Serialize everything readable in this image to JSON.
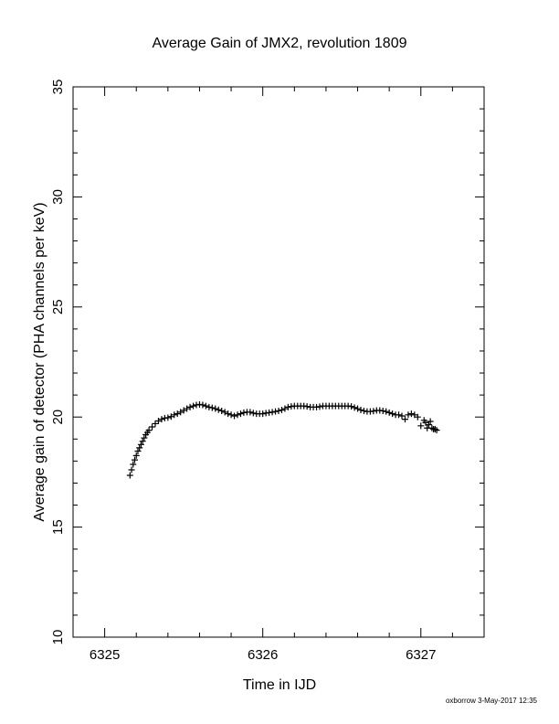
{
  "chart_data": {
    "type": "scatter",
    "title": "Average Gain of JMX2, revolution 1809",
    "xlabel": "Time in IJD",
    "ylabel": "Average gain of detector (PHA channels per keV)",
    "xlim": [
      6324.8,
      6327.4
    ],
    "ylim": [
      10,
      35
    ],
    "x_ticks": [
      6325,
      6326,
      6327
    ],
    "x_tick_labels": [
      "6325",
      "6326",
      "6327"
    ],
    "y_ticks": [
      10,
      15,
      20,
      25,
      30,
      35
    ],
    "y_tick_labels": [
      "10",
      "15",
      "20",
      "25",
      "30",
      "35"
    ],
    "x_minor_step": 0.2,
    "y_minor_step": 1,
    "grid": false,
    "marker": "+",
    "marker_color": "#000000",
    "series": [
      {
        "x": [
          6325.16,
          6325.17,
          6325.18,
          6325.19,
          6325.2,
          6325.21,
          6325.22,
          6325.23,
          6325.24,
          6325.25,
          6325.26,
          6325.27,
          6325.28,
          6325.3,
          6325.32,
          6325.34,
          6325.36,
          6325.38,
          6325.4,
          6325.42,
          6325.44,
          6325.46,
          6325.48,
          6325.5,
          6325.52,
          6325.54,
          6325.56,
          6325.58,
          6325.6,
          6325.62,
          6325.64,
          6325.66,
          6325.68,
          6325.7,
          6325.72,
          6325.74,
          6325.76,
          6325.78,
          6325.8,
          6325.82,
          6325.84,
          6325.86,
          6325.88,
          6325.9,
          6325.92,
          6325.94,
          6325.96,
          6325.98,
          6326.0,
          6326.02,
          6326.04,
          6326.06,
          6326.08,
          6326.1,
          6326.12,
          6326.14,
          6326.16,
          6326.18,
          6326.2,
          6326.22,
          6326.24,
          6326.26,
          6326.28,
          6326.3,
          6326.32,
          6326.34,
          6326.36,
          6326.38,
          6326.4,
          6326.42,
          6326.44,
          6326.46,
          6326.48,
          6326.5,
          6326.52,
          6326.54,
          6326.56,
          6326.58,
          6326.6,
          6326.62,
          6326.64,
          6326.66,
          6326.68,
          6326.7,
          6326.72,
          6326.74,
          6326.76,
          6326.78,
          6326.8,
          6326.82,
          6326.84,
          6326.86,
          6326.88,
          6326.9,
          6326.92,
          6326.94,
          6326.96,
          6326.98,
          6327.0,
          6327.02,
          6327.03,
          6327.04,
          6327.05,
          6327.06,
          6327.07,
          6327.08,
          6327.09,
          6327.1
        ],
        "y": [
          17.35,
          17.6,
          17.85,
          18.05,
          18.25,
          18.45,
          18.6,
          18.75,
          18.9,
          19.05,
          19.2,
          19.3,
          19.4,
          19.55,
          19.7,
          19.82,
          19.9,
          19.95,
          19.97,
          20.02,
          20.1,
          20.15,
          20.22,
          20.3,
          20.38,
          20.45,
          20.5,
          20.55,
          20.57,
          20.55,
          20.5,
          20.45,
          20.42,
          20.38,
          20.33,
          20.28,
          20.22,
          20.15,
          20.1,
          20.05,
          20.1,
          20.15,
          20.2,
          20.22,
          20.22,
          20.18,
          20.15,
          20.15,
          20.15,
          20.18,
          20.2,
          20.22,
          20.25,
          20.28,
          20.32,
          20.38,
          20.45,
          20.48,
          20.5,
          20.5,
          20.5,
          20.5,
          20.48,
          20.45,
          20.45,
          20.45,
          20.47,
          20.5,
          20.5,
          20.5,
          20.5,
          20.5,
          20.5,
          20.5,
          20.5,
          20.5,
          20.48,
          20.43,
          20.38,
          20.32,
          20.28,
          20.25,
          20.25,
          20.27,
          20.3,
          20.3,
          20.28,
          20.25,
          20.2,
          20.15,
          20.1,
          20.1,
          20.05,
          19.9,
          20.1,
          20.15,
          20.1,
          20.0,
          19.6,
          19.85,
          19.75,
          19.5,
          19.65,
          19.8,
          19.5,
          19.45,
          19.45,
          19.4
        ]
      }
    ]
  },
  "footer": {
    "stamp": "oxborrow  3-May-2017 12:35"
  }
}
